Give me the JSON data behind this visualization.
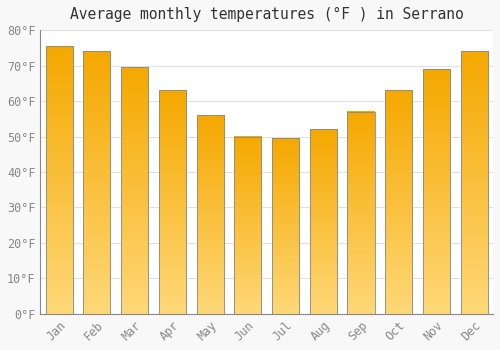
{
  "title": "Average monthly temperatures (°F ) in Serrano",
  "months": [
    "Jan",
    "Feb",
    "Mar",
    "Apr",
    "May",
    "Jun",
    "Jul",
    "Aug",
    "Sep",
    "Oct",
    "Nov",
    "Dec"
  ],
  "values": [
    75.5,
    74.0,
    69.5,
    63.0,
    56.0,
    50.0,
    49.5,
    52.0,
    57.0,
    63.0,
    69.0,
    74.0
  ],
  "bar_color_top": "#F5A800",
  "bar_color_bottom": "#FFD878",
  "bar_edge_color": "#888888",
  "background_color": "#F8F8F8",
  "plot_bg_color": "#FFFFFF",
  "grid_color": "#E0E0E0",
  "ylim": [
    0,
    80
  ],
  "yticks": [
    0,
    10,
    20,
    30,
    40,
    50,
    60,
    70,
    80
  ],
  "tick_label_color": "#888888",
  "title_color": "#333333",
  "title_fontsize": 10.5,
  "tick_fontsize": 8.5,
  "figsize": [
    5.0,
    3.5
  ],
  "dpi": 100,
  "bar_width": 0.72
}
